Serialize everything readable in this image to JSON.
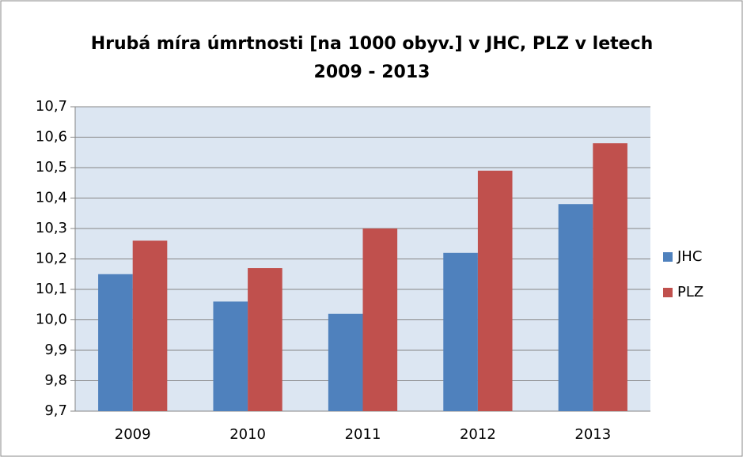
{
  "chart_data": {
    "type": "bar",
    "title": "Hrubá míra úmrtnosti [na 1000 obyv.] v JHC, PLZ v letech 2009 - 2013",
    "categories": [
      "2009",
      "2010",
      "2011",
      "2012",
      "2013"
    ],
    "series": [
      {
        "name": "JHC",
        "color": "#4f81bd",
        "values": [
          10.15,
          10.06,
          10.02,
          10.22,
          10.38
        ]
      },
      {
        "name": "PLZ",
        "color": "#c0504d",
        "values": [
          10.26,
          10.17,
          10.3,
          10.49,
          10.58
        ]
      }
    ],
    "ylim": [
      9.7,
      10.7
    ],
    "yticks": [
      {
        "value": 9.7,
        "label": "9,7"
      },
      {
        "value": 9.8,
        "label": "9,8"
      },
      {
        "value": 9.9,
        "label": "9,9"
      },
      {
        "value": 10.0,
        "label": "10,0"
      },
      {
        "value": 10.1,
        "label": "10,1"
      },
      {
        "value": 10.2,
        "label": "10,2"
      },
      {
        "value": 10.3,
        "label": "10,3"
      },
      {
        "value": 10.4,
        "label": "10,4"
      },
      {
        "value": 10.5,
        "label": "10,5"
      },
      {
        "value": 10.6,
        "label": "10,6"
      },
      {
        "value": 10.7,
        "label": "10,7"
      }
    ],
    "grid": true,
    "legend": "right"
  }
}
